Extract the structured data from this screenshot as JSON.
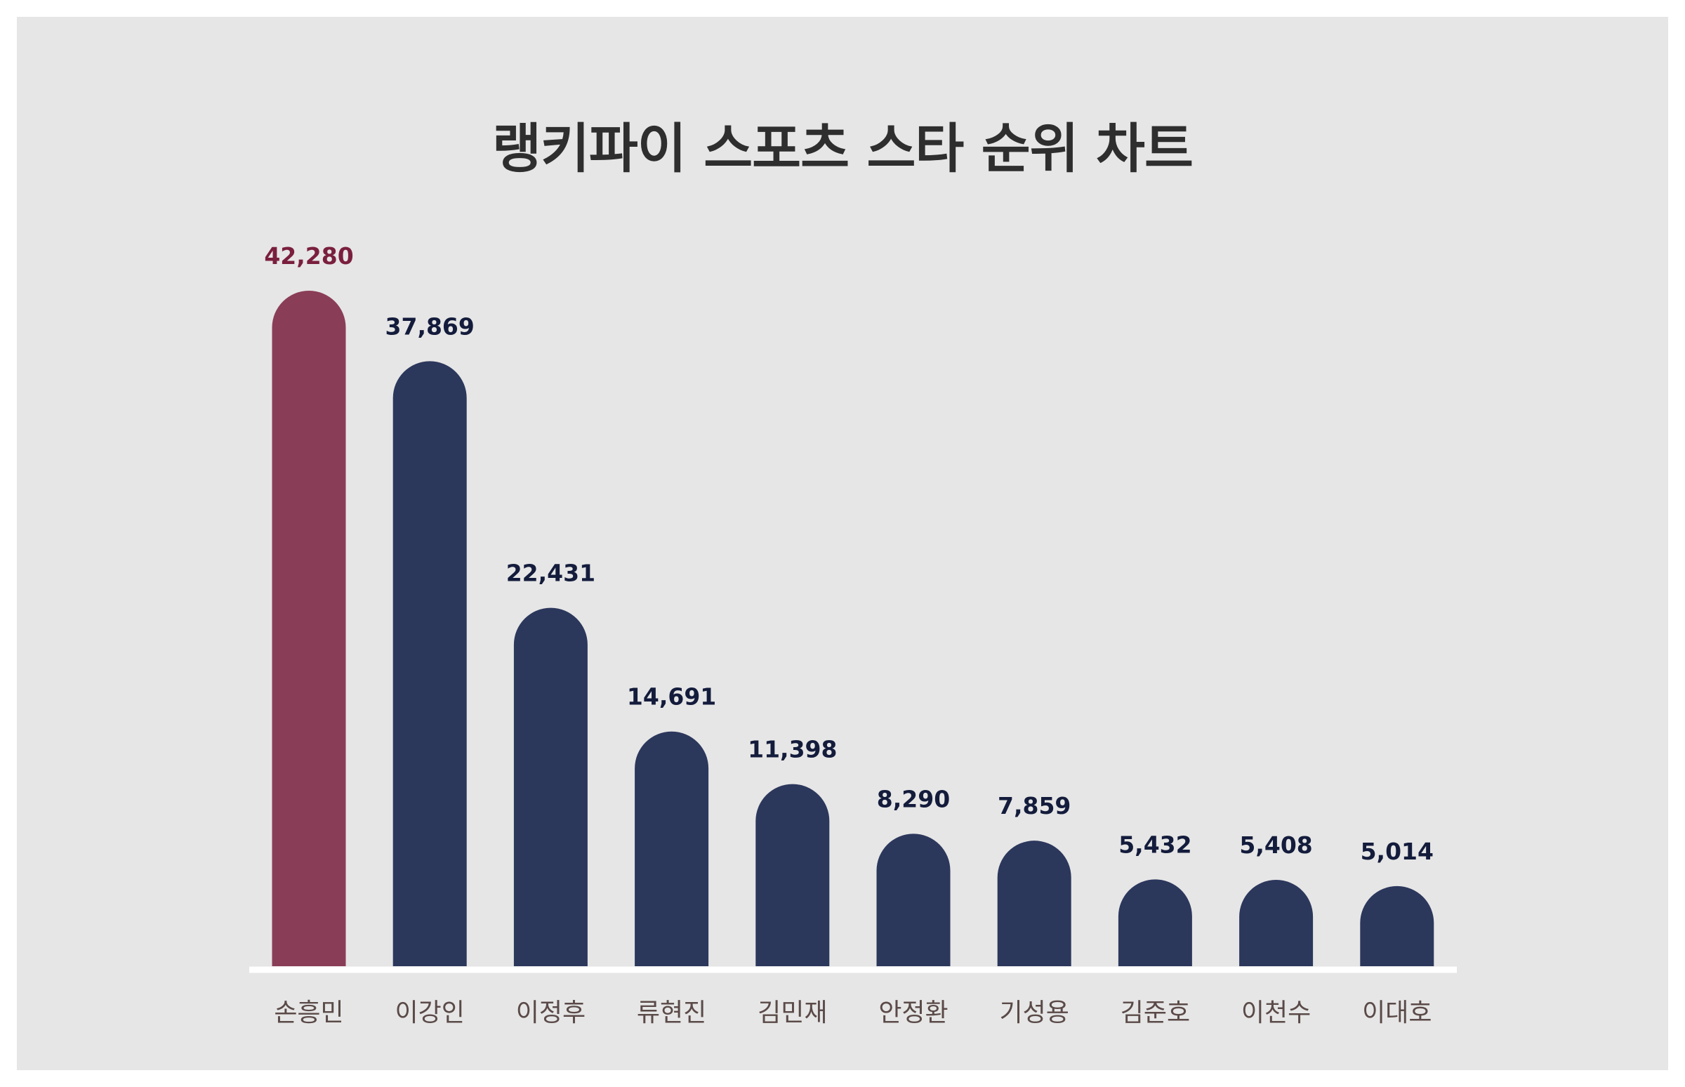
{
  "colors": {
    "background": "#e6e6e6",
    "highlight_bar": "#8a3d57",
    "bar": "#2c375c",
    "highlight_value_text": "#7a1f3d",
    "value_text": "#141c3c",
    "category_text": "#5a4a48",
    "baseline": "#ffffff"
  },
  "chart_data": {
    "type": "bar",
    "title": "랭키파이 스포츠 스타 순위 차트",
    "xlabel": "",
    "ylabel": "",
    "categories": [
      "손흥민",
      "이강인",
      "이정후",
      "류현진",
      "김민재",
      "안정환",
      "기성용",
      "김준호",
      "이천수",
      "이대호"
    ],
    "values": [
      42280,
      37869,
      22431,
      14691,
      11398,
      8290,
      7859,
      5432,
      5408,
      5014
    ],
    "value_labels": [
      "42,280",
      "37,869",
      "22,431",
      "14,691",
      "11,398",
      "8,290",
      "7,859",
      "5,432",
      "5,408",
      "5,014"
    ],
    "highlight_index": 0,
    "ylim": [
      0,
      42280
    ],
    "grid": false,
    "legend": "none"
  }
}
